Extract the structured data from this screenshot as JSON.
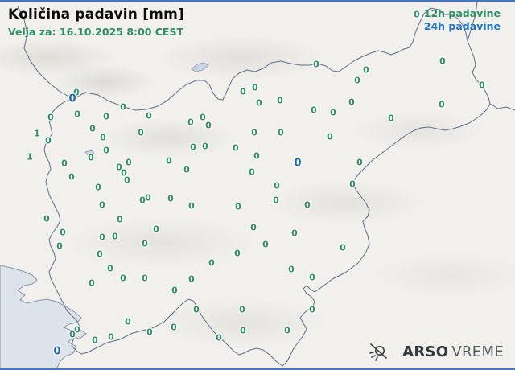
{
  "header": {
    "title": "Količina padavin [mm]",
    "subtitle": "Velja za: 16.10.2025 8:00 CEST"
  },
  "legend": {
    "item_12h": "12h padavine",
    "item_24h": "24h padavine"
  },
  "branding": {
    "arso": "ARSO",
    "vreme": "VREME"
  },
  "colors": {
    "green": "#2e8c66",
    "blue_station": "#1f61ab",
    "blue_legend": "#1e76c0",
    "frame": "#4376ba",
    "sea": "#dce3e9",
    "border_line": "#5f6d89",
    "land": "#f1f0ed"
  },
  "stations": {
    "unit": "mm",
    "green_12h": [
      [
        95,
        113,
        0
      ],
      [
        153,
        131,
        0
      ],
      [
        63,
        144,
        0
      ],
      [
        96,
        140,
        0
      ],
      [
        132,
        143,
        0
      ],
      [
        185,
        142,
        0
      ],
      [
        237,
        150,
        0
      ],
      [
        115,
        158,
        0
      ],
      [
        46,
        164,
        1
      ],
      [
        60,
        173,
        0
      ],
      [
        128,
        169,
        0
      ],
      [
        175,
        163,
        0
      ],
      [
        37,
        193,
        1
      ],
      [
        80,
        201,
        0
      ],
      [
        113,
        194,
        0
      ],
      [
        132,
        185,
        0
      ],
      [
        89,
        218,
        0
      ],
      [
        122,
        231,
        0
      ],
      [
        127,
        253,
        0
      ],
      [
        148,
        206,
        0
      ],
      [
        160,
        200,
        0
      ],
      [
        154,
        213,
        0
      ],
      [
        158,
        222,
        0
      ],
      [
        240,
        181,
        0
      ],
      [
        255,
        180,
        0
      ],
      [
        210,
        198,
        0
      ],
      [
        232,
        209,
        0
      ],
      [
        212,
        245,
        0
      ],
      [
        184,
        244,
        0
      ],
      [
        177,
        247,
        0
      ],
      [
        252,
        144,
        0
      ],
      [
        259,
        154,
        0
      ],
      [
        302,
        112,
        0
      ],
      [
        317,
        107,
        0
      ],
      [
        322,
        126,
        0
      ],
      [
        348,
        123,
        0
      ],
      [
        316,
        163,
        0
      ],
      [
        349,
        163,
        0
      ],
      [
        293,
        182,
        0
      ],
      [
        319,
        192,
        0
      ],
      [
        313,
        212,
        0
      ],
      [
        393,
        78,
        0
      ],
      [
        455,
        85,
        0
      ],
      [
        444,
        98,
        0
      ],
      [
        437,
        125,
        0
      ],
      [
        390,
        135,
        0
      ],
      [
        414,
        138,
        0
      ],
      [
        410,
        168,
        0
      ],
      [
        486,
        145,
        0
      ],
      [
        549,
        128,
        0
      ],
      [
        550,
        74,
        0
      ],
      [
        599,
        104,
        0
      ],
      [
        518,
        16,
        0
      ],
      [
        238,
        254,
        0
      ],
      [
        296,
        255,
        0
      ],
      [
        344,
        229,
        0
      ],
      [
        343,
        247,
        0
      ],
      [
        382,
        253,
        0
      ],
      [
        447,
        200,
        0
      ],
      [
        438,
        227,
        0
      ],
      [
        58,
        270,
        0
      ],
      [
        78,
        287,
        0
      ],
      [
        74,
        304,
        0
      ],
      [
        149,
        271,
        0
      ],
      [
        143,
        292,
        0
      ],
      [
        127,
        293,
        0
      ],
      [
        124,
        314,
        0
      ],
      [
        194,
        283,
        0
      ],
      [
        180,
        301,
        0
      ],
      [
        315,
        281,
        0
      ],
      [
        366,
        288,
        0
      ],
      [
        330,
        302,
        0
      ],
      [
        426,
        306,
        0
      ],
      [
        295,
        313,
        0
      ],
      [
        263,
        325,
        0
      ],
      [
        362,
        333,
        0
      ],
      [
        137,
        332,
        0
      ],
      [
        114,
        350,
        0
      ],
      [
        153,
        344,
        0
      ],
      [
        180,
        344,
        0
      ],
      [
        217,
        359,
        0
      ],
      [
        238,
        345,
        0
      ],
      [
        388,
        343,
        0
      ],
      [
        159,
        398,
        0
      ],
      [
        96,
        408,
        0
      ],
      [
        90,
        414,
        0
      ],
      [
        118,
        421,
        0
      ],
      [
        138,
        417,
        0
      ],
      [
        186,
        411,
        0
      ],
      [
        216,
        405,
        0
      ],
      [
        244,
        383,
        0
      ],
      [
        301,
        383,
        0
      ],
      [
        388,
        383,
        0
      ],
      [
        302,
        409,
        0
      ],
      [
        357,
        409,
        0
      ],
      [
        272,
        418,
        0
      ]
    ],
    "blue_24h": [
      [
        90,
        121,
        0
      ],
      [
        370,
        201,
        0
      ],
      [
        71,
        435,
        0
      ]
    ]
  }
}
